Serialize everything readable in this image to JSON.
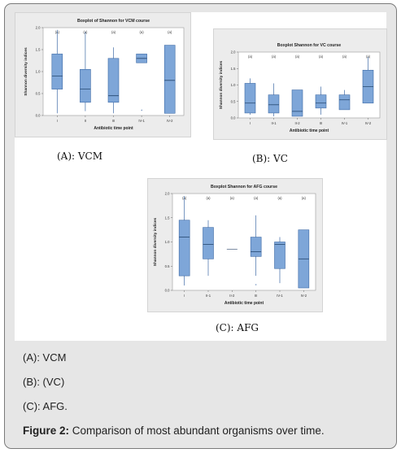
{
  "panels": [
    {
      "caption": "(A): VCM",
      "chart_data": {
        "type": "box",
        "title": "Boxplot of Shannon for VCM course",
        "xlabel": "Antibiotic time point",
        "ylabel": "Shannon diversity indices",
        "ylim": [
          0,
          2.0
        ],
        "yticks": [
          "0.0",
          "0.5",
          "1.0",
          "1.5",
          "2.0"
        ],
        "categories": [
          "I",
          "II",
          "III",
          "IV-1",
          "IV-2"
        ],
        "group_letters": [
          "(a)",
          "(a)",
          "(a)",
          "(a)",
          "(a)"
        ],
        "boxes": [
          {
            "min": 0.05,
            "q1": 0.6,
            "median": 0.9,
            "q3": 1.4,
            "max": 1.95,
            "outliers": []
          },
          {
            "min": 0.1,
            "q1": 0.3,
            "median": 0.6,
            "q3": 1.05,
            "max": 1.9,
            "outliers": []
          },
          {
            "min": 0.05,
            "q1": 0.3,
            "median": 0.45,
            "q3": 1.3,
            "max": 1.55,
            "outliers": []
          },
          {
            "min": 1.2,
            "q1": 1.2,
            "median": 1.3,
            "q3": 1.4,
            "max": 1.4,
            "outliers": [
              0.1
            ]
          },
          {
            "min": 0.05,
            "q1": 0.05,
            "median": 0.8,
            "q3": 1.6,
            "max": 1.6,
            "outliers": []
          }
        ]
      }
    },
    {
      "caption": "(B): VC",
      "chart_data": {
        "type": "box",
        "title": "Boxplot Shannon for VC course",
        "xlabel": "Antibiotic time point",
        "ylabel": "Shannon diversity indices",
        "ylim": [
          0,
          2.0
        ],
        "yticks": [
          "0.0",
          "0.5",
          "1.0",
          "1.5",
          "2.0"
        ],
        "categories": [
          "I",
          "II-1",
          "II-2",
          "III",
          "IV-1",
          "IV-2"
        ],
        "group_letters": [
          "(a)",
          "(a)",
          "(a)",
          "(a)",
          "(a)",
          "(a)"
        ],
        "boxes": [
          {
            "min": 0.1,
            "q1": 0.15,
            "median": 0.45,
            "q3": 1.05,
            "max": 1.2,
            "outliers": []
          },
          {
            "min": 0.05,
            "q1": 0.15,
            "median": 0.4,
            "q3": 0.7,
            "max": 1.05,
            "outliers": []
          },
          {
            "min": 0.05,
            "q1": 0.05,
            "median": 0.2,
            "q3": 0.85,
            "max": 0.85,
            "outliers": []
          },
          {
            "min": 0.1,
            "q1": 0.3,
            "median": 0.45,
            "q3": 0.7,
            "max": 0.95,
            "outliers": []
          },
          {
            "min": 0.25,
            "q1": 0.25,
            "median": 0.55,
            "q3": 0.7,
            "max": 0.85,
            "outliers": []
          },
          {
            "min": 0.45,
            "q1": 0.45,
            "median": 0.95,
            "q3": 1.45,
            "max": 1.85,
            "outliers": []
          }
        ]
      }
    },
    {
      "caption": "(C): AFG",
      "chart_data": {
        "type": "box",
        "title": "Boxplot Shannon for AFG course",
        "xlabel": "Antibiotic time point",
        "ylabel": "Shannon diversity indices",
        "ylim": [
          0,
          2.0
        ],
        "yticks": [
          "0.0",
          "0.5",
          "1.0",
          "1.5",
          "2.0"
        ],
        "categories": [
          "I",
          "II-1",
          "II-2",
          "III",
          "IV-1",
          "IV-2"
        ],
        "group_letters": [
          "(a)",
          "(a)",
          "(a)",
          "(a)",
          "(a)",
          "(a)"
        ],
        "boxes": [
          {
            "min": 0.1,
            "q1": 0.3,
            "median": 1.1,
            "q3": 1.45,
            "max": 1.95,
            "outliers": []
          },
          {
            "min": 0.3,
            "q1": 0.65,
            "median": 0.95,
            "q3": 1.3,
            "max": 1.45,
            "outliers": []
          },
          {
            "min": 0.85,
            "q1": 0.85,
            "median": 0.85,
            "q3": 0.85,
            "max": 0.85,
            "outliers": []
          },
          {
            "min": 0.3,
            "q1": 0.7,
            "median": 0.8,
            "q3": 1.1,
            "max": 1.55,
            "outliers": [
              0.1
            ]
          },
          {
            "min": 0.15,
            "q1": 0.45,
            "median": 0.95,
            "q3": 1.0,
            "max": 1.1,
            "outliers": []
          },
          {
            "min": 0.05,
            "q1": 0.05,
            "median": 0.65,
            "q3": 1.25,
            "max": 1.25,
            "outliers": []
          }
        ]
      }
    }
  ],
  "legend": [
    "(A): VCM",
    "(B): (VC)",
    "(C): AFG."
  ],
  "figure_caption": {
    "label": "Figure 2:",
    "text": " Comparison of most abundant organisms over time."
  },
  "colors": {
    "box_fill": "#7ea6d8",
    "box_stroke": "#3e6aa6",
    "plot_bg": "#ffffff",
    "panel_bg": "#ececec"
  }
}
